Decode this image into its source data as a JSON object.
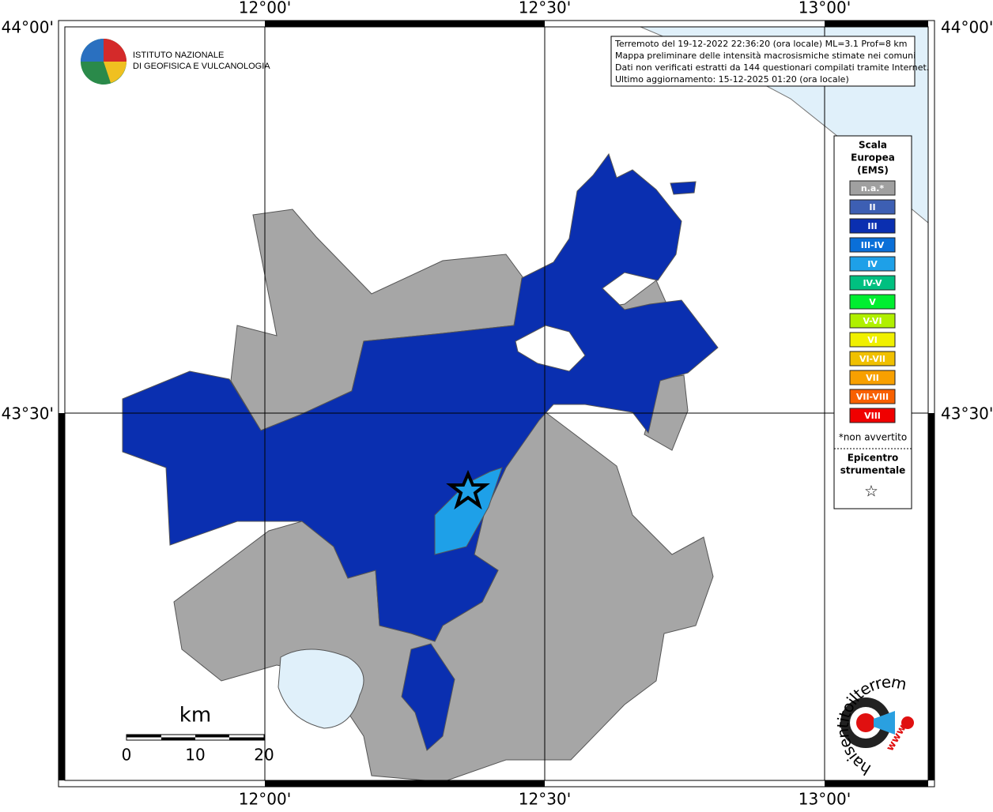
{
  "grid": {
    "top_labels": [
      "12°00'",
      "12°30'",
      "13°00'"
    ],
    "bottom_labels": [
      "12°00'",
      "12°30'",
      "13°00'"
    ],
    "left_labels": [
      "44°00'",
      "43°30'"
    ],
    "right_labels": [
      "44°00'",
      "43°30'"
    ]
  },
  "info_box": {
    "lines": [
      "Terremoto del 19-12-2022 22:36:20 (ora locale) ML=3.1 Prof=8 km",
      "Mappa preliminare delle intensità macrosismiche stimate nei comuni",
      "Dati non verificati estratti da 144 questionari compilati tramite Internet.",
      "Ultimo aggiornamento: 15-12-2025 01:20 (ora locale)"
    ]
  },
  "logo": {
    "lines": [
      "ISTITUTO NAZIONALE",
      "DI GEOFISICA E VULCANOLOGIA"
    ]
  },
  "legend": {
    "title": [
      "Scala",
      "Europea",
      "(EMS)"
    ],
    "items": [
      {
        "label": "n.a.*",
        "color": "#a0a0a0"
      },
      {
        "label": "II",
        "color": "#3d5fb3"
      },
      {
        "label": "III",
        "color": "#0a2fb0"
      },
      {
        "label": "III-IV",
        "color": "#0a6fd8"
      },
      {
        "label": "IV",
        "color": "#1ea0e8"
      },
      {
        "label": "IV-V",
        "color": "#00c080"
      },
      {
        "label": "V",
        "color": "#00ee30"
      },
      {
        "label": "V-VI",
        "color": "#b0f000"
      },
      {
        "label": "VI",
        "color": "#f0f000"
      },
      {
        "label": "VI-VII",
        "color": "#f0c000"
      },
      {
        "label": "VII",
        "color": "#f8a000"
      },
      {
        "label": "VII-VIII",
        "color": "#f86000"
      },
      {
        "label": "VIII",
        "color": "#f00000"
      }
    ],
    "note": "*non avvertito",
    "epicenter": [
      "Epicentro",
      "strumentale"
    ],
    "epicenter_symbol": "☆"
  },
  "scale_bar": {
    "unit": "km",
    "ticks": [
      "0",
      "10",
      "20"
    ]
  },
  "hsit_logo": {
    "text": "haisentitoilterremoto.it",
    "prefix": "www."
  }
}
